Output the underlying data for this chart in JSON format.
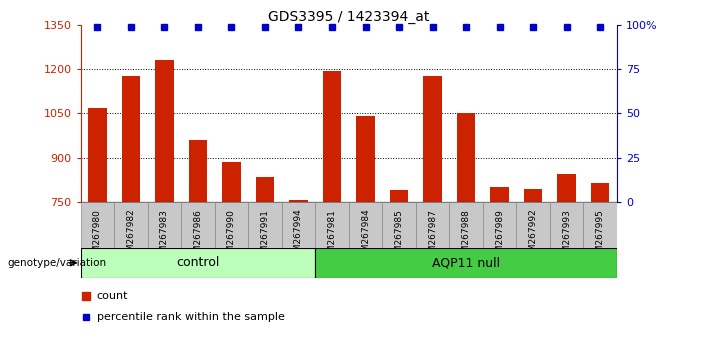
{
  "title": "GDS3395 / 1423394_at",
  "samples": [
    "GSM267980",
    "GSM267982",
    "GSM267983",
    "GSM267986",
    "GSM267990",
    "GSM267991",
    "GSM267994",
    "GSM267981",
    "GSM267984",
    "GSM267985",
    "GSM267987",
    "GSM267988",
    "GSM267989",
    "GSM267992",
    "GSM267993",
    "GSM267995"
  ],
  "counts": [
    1068,
    1175,
    1230,
    960,
    885,
    835,
    755,
    1195,
    1042,
    790,
    1175,
    1052,
    800,
    795,
    845,
    815
  ],
  "ctrl_count": 7,
  "aqp_count": 9,
  "bar_color": "#CC2200",
  "dot_color": "#0000CC",
  "ylim_left": [
    750,
    1350
  ],
  "yticks_left": [
    750,
    900,
    1050,
    1200,
    1350
  ],
  "ylim_right": [
    0,
    100
  ],
  "yticks_right": [
    0,
    25,
    50,
    75,
    100
  ],
  "ytick_right_labels": [
    "0",
    "25",
    "50",
    "75",
    "100%"
  ],
  "ylabel_left_color": "#CC2200",
  "ylabel_right_color": "#0000CC",
  "gridline_values": [
    900,
    1050,
    1200
  ],
  "control_color": "#BBFFBB",
  "aqp_color": "#44CC44",
  "legend_count_label": "count",
  "legend_pct_label": "percentile rank within the sample",
  "genotype_label": "genotype/variation"
}
